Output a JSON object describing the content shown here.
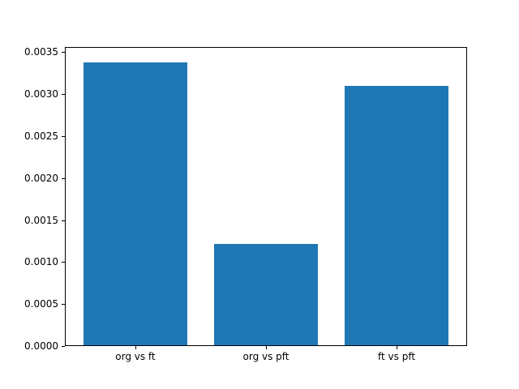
{
  "chart_data": {
    "type": "bar",
    "title": "",
    "xlabel": "",
    "ylabel": "",
    "categories": [
      "org vs ft",
      "org vs pft",
      "ft vs pft"
    ],
    "values": [
      0.00339,
      0.00121,
      0.0031
    ],
    "ylim": [
      0,
      0.00356
    ],
    "yticks": [
      0.0,
      0.0005,
      0.001,
      0.0015,
      0.002,
      0.0025,
      0.003,
      0.0035
    ],
    "ytick_decimals": 4,
    "bar_color": "#1f77b4",
    "axis_color": "#000000",
    "background_color": "#ffffff",
    "grid": false,
    "legend": "none",
    "bar_width_fraction": 0.8,
    "x_margin": 0.04
  }
}
